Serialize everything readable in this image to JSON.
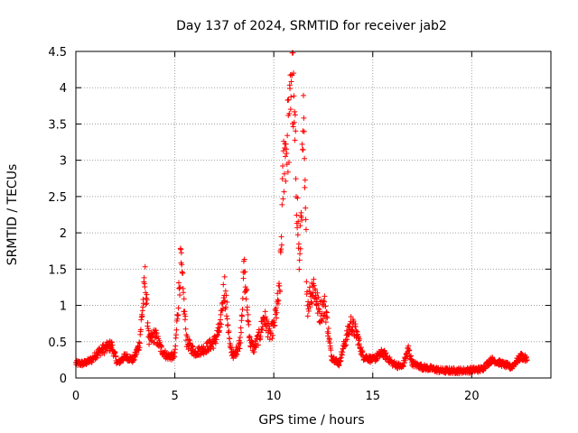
{
  "chart_data": {
    "type": "scatter",
    "title": "Day 137 of 2024, SRMTID for receiver jab2",
    "xlabel": "GPS time / hours",
    "ylabel": "SRMTID / TECUs",
    "xlim": [
      0,
      24
    ],
    "ylim": [
      0,
      4.5
    ],
    "xticks": [
      0,
      5,
      10,
      15,
      20
    ],
    "xtick_labels": [
      "0",
      "5",
      "10",
      "15",
      "20"
    ],
    "yticks": [
      0,
      0.5,
      1,
      1.5,
      2,
      2.5,
      3,
      3.5,
      4,
      4.5
    ],
    "ytick_labels": [
      "0",
      "0.5",
      "1",
      "1.5",
      "2",
      "2.5",
      "3",
      "3.5",
      "4",
      "4.5"
    ],
    "grid": true,
    "marker": "+",
    "color": "#ff0000",
    "profile": [
      [
        0.0,
        0.2
      ],
      [
        0.4,
        0.2
      ],
      [
        0.8,
        0.25
      ],
      [
        1.1,
        0.35
      ],
      [
        1.4,
        0.4
      ],
      [
        1.8,
        0.45
      ],
      [
        2.1,
        0.2
      ],
      [
        2.5,
        0.3
      ],
      [
        2.9,
        0.25
      ],
      [
        3.2,
        0.45
      ],
      [
        3.5,
        1.35
      ],
      [
        3.7,
        0.5
      ],
      [
        4.0,
        0.6
      ],
      [
        4.3,
        0.4
      ],
      [
        4.6,
        0.3
      ],
      [
        5.0,
        0.3
      ],
      [
        5.3,
        1.6
      ],
      [
        5.6,
        0.5
      ],
      [
        6.0,
        0.35
      ],
      [
        6.5,
        0.4
      ],
      [
        7.0,
        0.5
      ],
      [
        7.3,
        0.7
      ],
      [
        7.5,
        1.3
      ],
      [
        7.8,
        0.4
      ],
      [
        8.0,
        0.3
      ],
      [
        8.3,
        0.5
      ],
      [
        8.5,
        1.5
      ],
      [
        8.8,
        0.5
      ],
      [
        9.0,
        0.4
      ],
      [
        9.3,
        0.6
      ],
      [
        9.5,
        0.85
      ],
      [
        9.8,
        0.6
      ],
      [
        10.0,
        0.7
      ],
      [
        10.3,
        1.2
      ],
      [
        10.5,
        3.0
      ],
      [
        10.8,
        3.5
      ],
      [
        10.9,
        4.4
      ],
      [
        11.1,
        3.0
      ],
      [
        11.3,
        1.5
      ],
      [
        11.5,
        3.4
      ],
      [
        11.7,
        1.0
      ],
      [
        12.0,
        1.3
      ],
      [
        12.3,
        0.9
      ],
      [
        12.6,
        1.0
      ],
      [
        12.9,
        0.3
      ],
      [
        13.3,
        0.2
      ],
      [
        13.6,
        0.5
      ],
      [
        13.9,
        0.75
      ],
      [
        14.2,
        0.6
      ],
      [
        14.5,
        0.3
      ],
      [
        15.0,
        0.25
      ],
      [
        15.5,
        0.35
      ],
      [
        16.0,
        0.2
      ],
      [
        16.5,
        0.15
      ],
      [
        16.8,
        0.4
      ],
      [
        17.0,
        0.2
      ],
      [
        17.5,
        0.15
      ],
      [
        18.5,
        0.1
      ],
      [
        19.5,
        0.1
      ],
      [
        20.5,
        0.12
      ],
      [
        21.0,
        0.25
      ],
      [
        21.5,
        0.2
      ],
      [
        22.0,
        0.15
      ],
      [
        22.5,
        0.3
      ],
      [
        22.8,
        0.25
      ]
    ]
  }
}
